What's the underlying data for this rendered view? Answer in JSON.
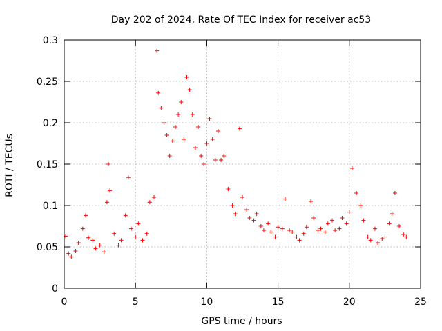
{
  "chart_data": {
    "type": "scatter",
    "title": "Day 202 of 2024, Rate Of TEC Index for receiver ac53",
    "xlabel": "GPS time / hours",
    "ylabel": "ROTI / TECUs",
    "xlim": [
      0,
      25
    ],
    "ylim": [
      0,
      0.3
    ],
    "xticks": [
      0,
      5,
      10,
      15,
      20,
      25
    ],
    "xtick_labels": [
      "0",
      "5",
      "10",
      "15",
      "20",
      "25"
    ],
    "yticks": [
      0,
      0.05,
      0.1,
      0.15,
      0.2,
      0.25,
      0.3
    ],
    "ytick_labels": [
      "0",
      "0.05",
      "0.1",
      "0.15",
      "0.2",
      "0.25",
      "0.3"
    ],
    "grid": true,
    "marker": "plus",
    "color": "#ff0000",
    "x": [
      0.1,
      0.3,
      0.5,
      0.8,
      1.0,
      1.3,
      1.5,
      1.7,
      2.0,
      2.2,
      2.5,
      2.8,
      3.0,
      3.1,
      3.2,
      3.5,
      3.8,
      4.0,
      4.3,
      4.5,
      4.7,
      5.0,
      5.2,
      5.5,
      5.8,
      6.0,
      6.3,
      6.5,
      6.6,
      6.8,
      7.0,
      7.2,
      7.4,
      7.6,
      7.8,
      8.0,
      8.2,
      8.4,
      8.6,
      8.8,
      9.0,
      9.2,
      9.4,
      9.6,
      9.8,
      10.0,
      10.2,
      10.4,
      10.6,
      10.8,
      11.0,
      11.2,
      11.5,
      11.8,
      12.0,
      12.3,
      12.5,
      12.8,
      13.0,
      13.3,
      13.5,
      13.8,
      14.0,
      14.3,
      14.5,
      14.8,
      15.0,
      15.3,
      15.5,
      15.8,
      16.0,
      16.3,
      16.5,
      16.8,
      17.0,
      17.3,
      17.5,
      17.8,
      18.0,
      18.3,
      18.5,
      18.8,
      19.0,
      19.3,
      19.5,
      19.8,
      20.0,
      20.2,
      20.5,
      20.8,
      21.0,
      21.3,
      21.5,
      21.8,
      22.0,
      22.3,
      22.5,
      22.8,
      23.0,
      23.2,
      23.5,
      23.8,
      24.0
    ],
    "y": [
      0.063,
      0.042,
      0.038,
      0.045,
      0.055,
      0.072,
      0.088,
      0.061,
      0.058,
      0.048,
      0.052,
      0.044,
      0.104,
      0.15,
      0.118,
      0.066,
      0.052,
      0.058,
      0.088,
      0.134,
      0.072,
      0.062,
      0.078,
      0.058,
      0.066,
      0.104,
      0.11,
      0.287,
      0.236,
      0.218,
      0.2,
      0.185,
      0.16,
      0.178,
      0.195,
      0.21,
      0.225,
      0.18,
      0.255,
      0.24,
      0.21,
      0.17,
      0.195,
      0.16,
      0.15,
      0.175,
      0.205,
      0.18,
      0.155,
      0.19,
      0.155,
      0.16,
      0.12,
      0.1,
      0.09,
      0.193,
      0.11,
      0.095,
      0.085,
      0.082,
      0.09,
      0.075,
      0.07,
      0.078,
      0.068,
      0.062,
      0.074,
      0.072,
      0.108,
      0.07,
      0.068,
      0.062,
      0.058,
      0.066,
      0.074,
      0.105,
      0.085,
      0.07,
      0.072,
      0.068,
      0.078,
      0.082,
      0.07,
      0.072,
      0.085,
      0.078,
      0.092,
      0.145,
      0.115,
      0.1,
      0.082,
      0.062,
      0.058,
      0.072,
      0.055,
      0.06,
      0.062,
      0.078,
      0.09,
      0.115,
      0.075,
      0.065,
      0.062
    ]
  }
}
